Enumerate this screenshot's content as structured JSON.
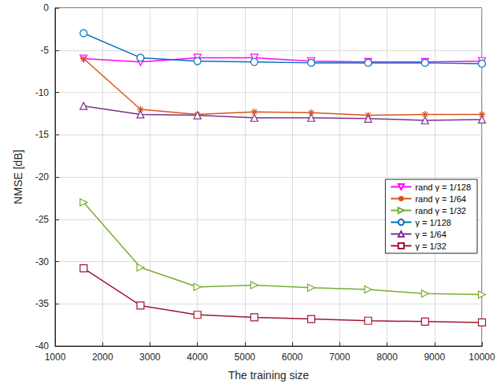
{
  "chart_data": {
    "type": "line",
    "x_label": "The training size",
    "y_label": "NMSE [dB]",
    "x": [
      1600,
      2800,
      4000,
      5200,
      6400,
      7600,
      8800,
      10000
    ],
    "xlim": [
      1000,
      10000
    ],
    "xticks": [
      1000,
      2000,
      3000,
      4000,
      5000,
      6000,
      7000,
      8000,
      9000,
      10000
    ],
    "ylim": [
      -40,
      0
    ],
    "yticks": [
      -40,
      -35,
      -30,
      -25,
      -20,
      -15,
      -10,
      -5,
      0
    ],
    "grid": true,
    "legend": "right",
    "series": [
      {
        "name": "rand γ = 1/128",
        "color": "#ff00ff",
        "marker": "triangle-down",
        "values": [
          -6.0,
          -6.4,
          -5.9,
          -5.9,
          -6.3,
          -6.4,
          -6.4,
          -6.3
        ]
      },
      {
        "name": "rand γ = 1/64",
        "color": "#d95319",
        "marker": "asterisk",
        "values": [
          -6.0,
          -12.0,
          -12.6,
          -12.3,
          -12.4,
          -12.7,
          -12.6,
          -12.6
        ]
      },
      {
        "name": "rand γ = 1/32",
        "color": "#77ac30",
        "marker": "triangle-right",
        "values": [
          -23.0,
          -30.7,
          -33.0,
          -32.8,
          -33.1,
          -33.3,
          -33.8,
          -33.9
        ]
      },
      {
        "name": "γ = 1/128",
        "color": "#0072bd",
        "marker": "circle",
        "values": [
          -3.0,
          -5.9,
          -6.3,
          -6.4,
          -6.5,
          -6.5,
          -6.5,
          -6.6
        ]
      },
      {
        "name": "γ = 1/64",
        "color": "#7e2f8e",
        "marker": "triangle-up",
        "values": [
          -11.6,
          -12.6,
          -12.7,
          -13.0,
          -13.0,
          -13.1,
          -13.3,
          -13.2
        ]
      },
      {
        "name": "γ = 1/32",
        "color": "#a2142f",
        "marker": "square",
        "values": [
          -30.8,
          -35.2,
          -36.3,
          -36.6,
          -36.8,
          -37.0,
          -37.1,
          -37.2
        ]
      }
    ]
  }
}
